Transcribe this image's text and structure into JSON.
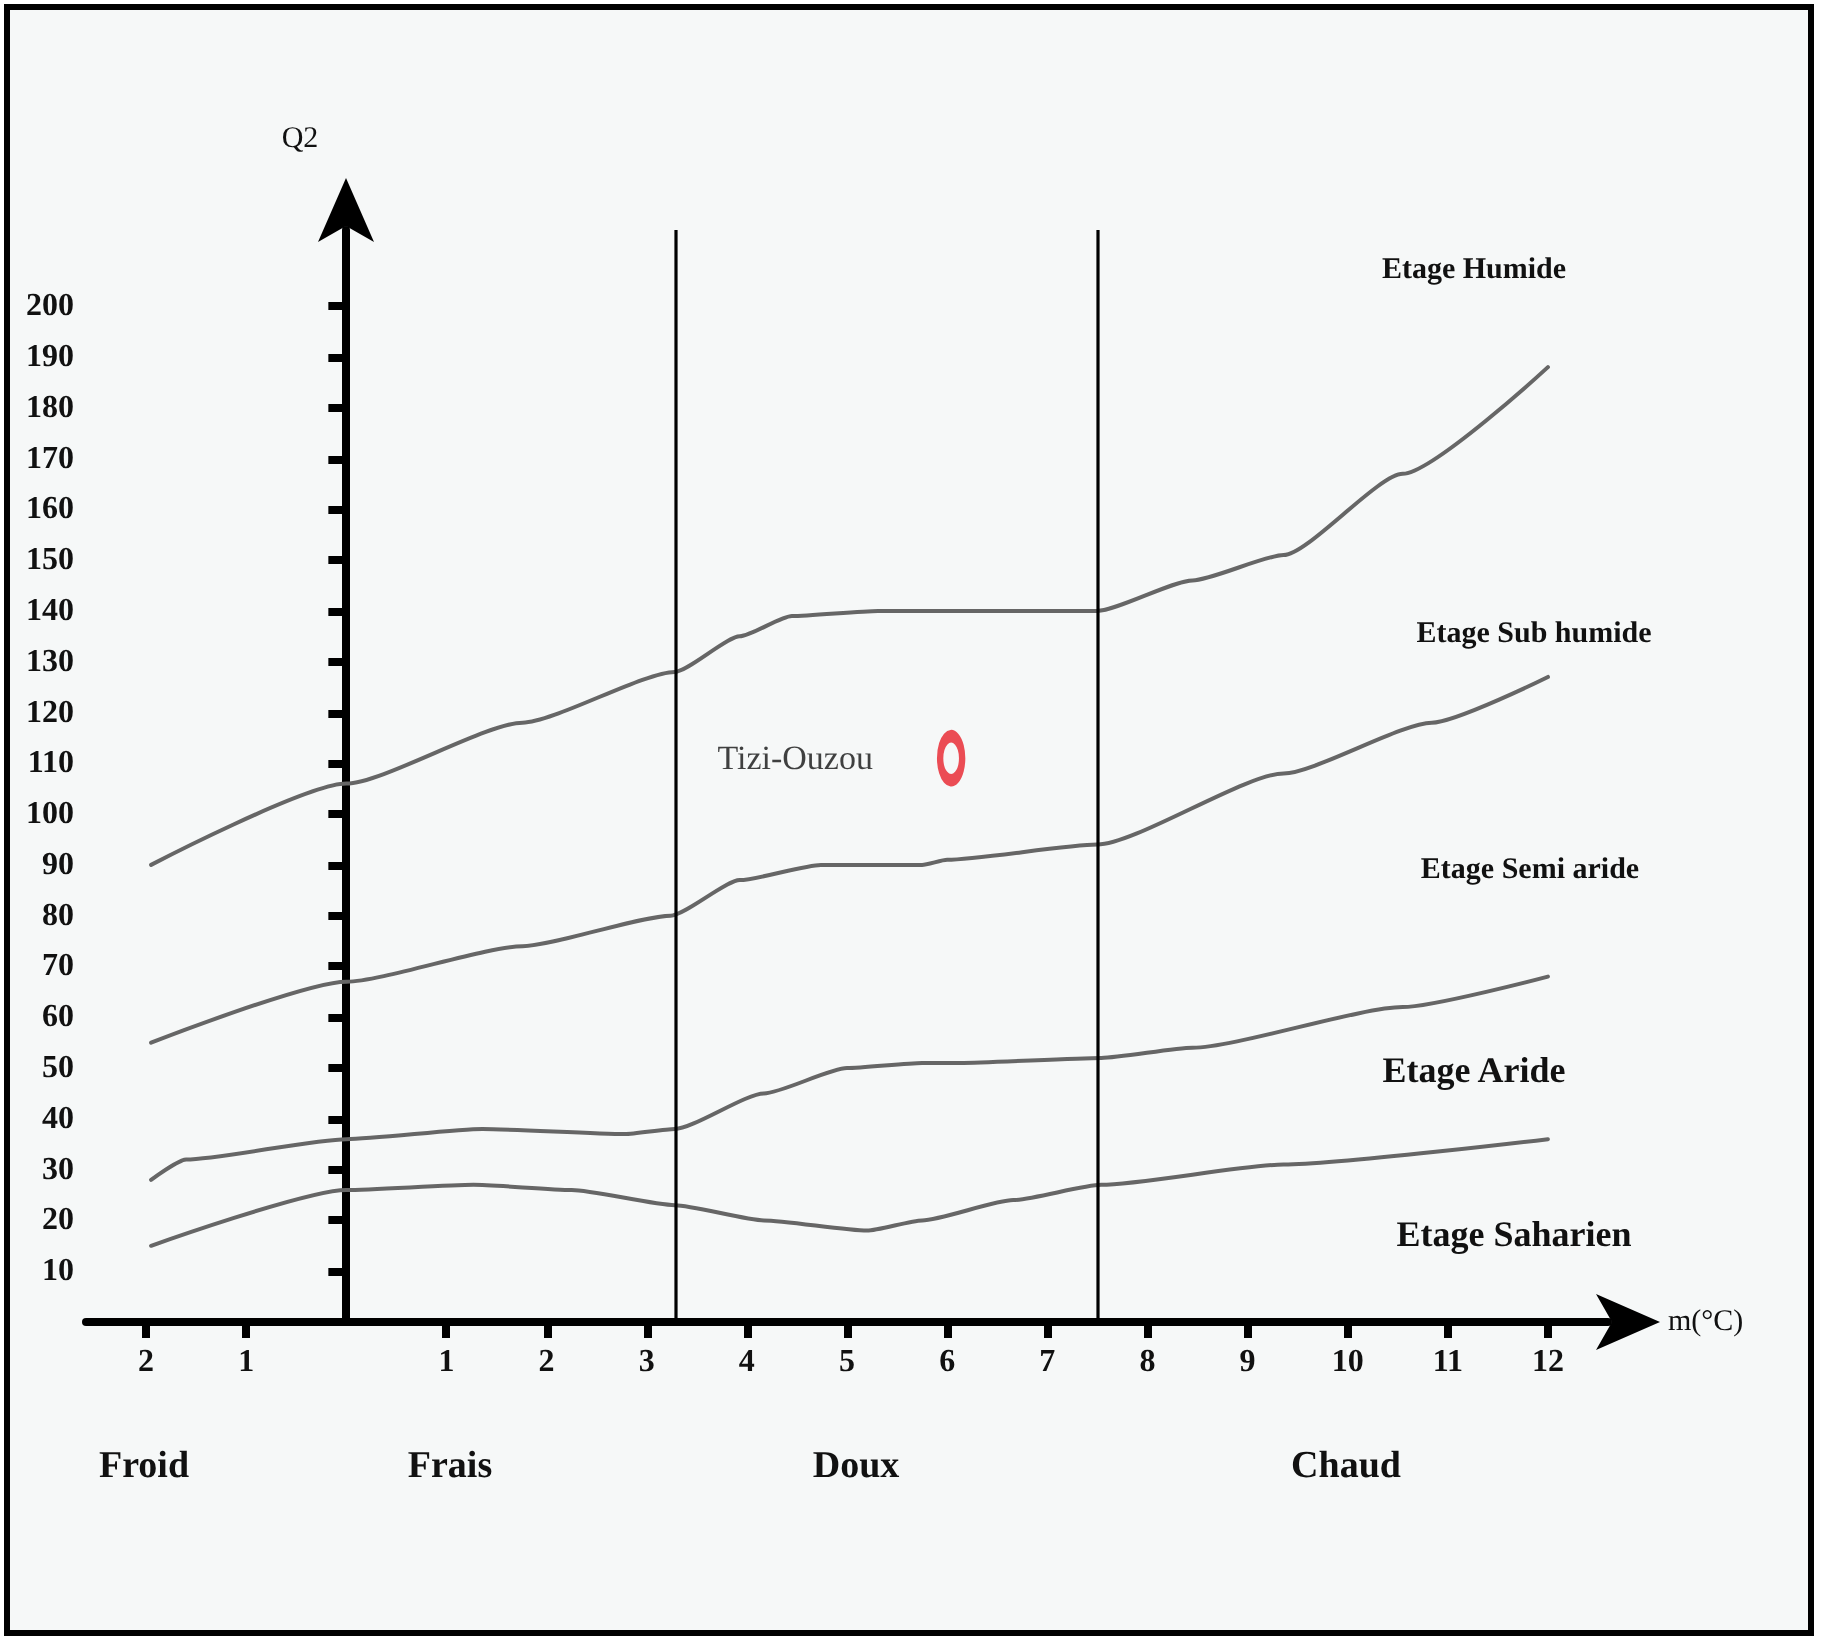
{
  "chart_data": {
    "type": "line",
    "xlabel": "m(°C)",
    "ylabel": "Q2",
    "xlim": [
      -2.6,
      12.6
    ],
    "ylim": [
      0,
      215
    ],
    "xticks": [
      {
        "value": -2,
        "label": "2"
      },
      {
        "value": -1,
        "label": "1"
      },
      1,
      2,
      3,
      4,
      5,
      6,
      7,
      8,
      9,
      10,
      11,
      12
    ],
    "yticks": [
      10,
      20,
      30,
      40,
      50,
      60,
      70,
      80,
      90,
      100,
      110,
      120,
      130,
      140,
      150,
      160,
      170,
      180,
      190,
      200
    ],
    "marker": "none",
    "line_style": "solid",
    "series": [
      {
        "color": "#666666",
        "x": [
          -1.95,
          0,
          1.76,
          3.28,
          3.93,
          4.45,
          5.31,
          5.75,
          7.5,
          8.45,
          9.36,
          10.55,
          12
        ],
        "values": [
          90,
          106,
          118,
          128,
          135,
          139,
          140,
          140,
          140,
          146,
          151,
          167,
          188
        ]
      },
      {
        "color": "#666666",
        "x": [
          -1.95,
          0,
          1.76,
          3.24,
          3.93,
          4.74,
          5.75,
          6,
          7.5,
          9.36,
          10.84,
          12
        ],
        "values": [
          55,
          67,
          74,
          80,
          87,
          90,
          90,
          91,
          94,
          108,
          118,
          127
        ]
      },
      {
        "color": "#666666",
        "x": [
          -1.95,
          -1.6,
          0,
          1.36,
          2.78,
          3.28,
          4.17,
          5,
          5.75,
          6.13,
          7.54,
          8.45,
          10.55,
          12
        ],
        "values": [
          28,
          32,
          36,
          38,
          37,
          38,
          45,
          50,
          51,
          51,
          52,
          54,
          62,
          68
        ]
      },
      {
        "color": "#666666",
        "x": [
          -1.95,
          0,
          1.27,
          2.25,
          3.28,
          4.17,
          5.2,
          5.75,
          6.66,
          7.54,
          9.36,
          12
        ],
        "values": [
          15,
          26,
          27,
          26,
          23,
          20,
          18,
          20,
          24,
          27,
          31,
          36
        ]
      },
      {
        "type": "scatter",
        "name": "Tizi-Ouzou",
        "color": "#e8202a",
        "marker": "circle",
        "x": [
          6.04
        ],
        "values": [
          111
        ]
      }
    ],
    "ref_lines": [
      {
        "axis": "x",
        "value": 3.28,
        "color": "#000000"
      },
      {
        "axis": "x",
        "value": 7.5,
        "color": "#000000"
      }
    ],
    "annotations": [
      "Etage Humide",
      "Etage Sub humide",
      "Etage Semi aride",
      "Etage Aride",
      "Etage Saharien",
      "Froid",
      "Frais",
      "Doux",
      "Chaud"
    ]
  }
}
